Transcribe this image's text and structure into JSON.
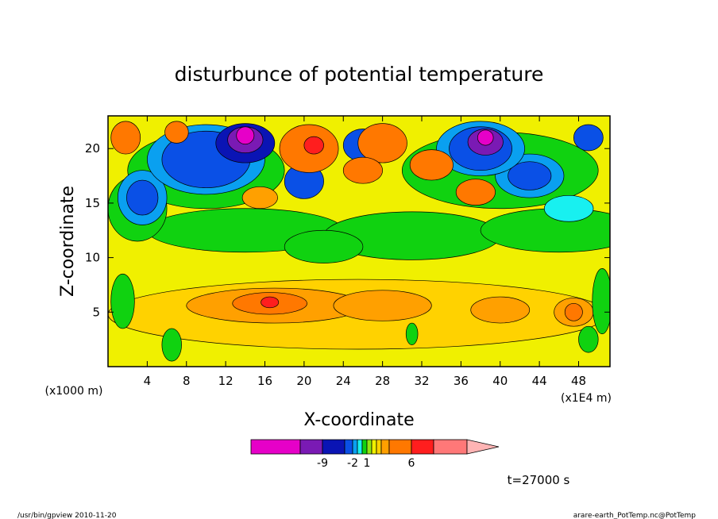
{
  "chart_data": {
    "type": "heatmap",
    "title": "disturbunce of potential temperature",
    "xlabel": "X-coordinate",
    "ylabel": "Z-coordinate",
    "x_unit_label": "(x1000 m)",
    "x_scale_label": "(x1E4 m)",
    "xlim": [
      0,
      51.2
    ],
    "ylim": [
      0,
      23
    ],
    "x_ticks": [
      "4",
      "8",
      "12",
      "16",
      "20",
      "24",
      "28",
      "32",
      "36",
      "40",
      "44",
      "48"
    ],
    "y_ticks": [
      "5",
      "10",
      "15",
      "20"
    ],
    "time_label": "t=27000 s",
    "colorbar": {
      "colors": [
        "#e600c8",
        "#7a1ab4",
        "#0a14b4",
        "#0a50e6",
        "#0aa0f0",
        "#18f0f0",
        "#10d210",
        "#90e610",
        "#f0f000",
        "#ffd200",
        "#ffa000",
        "#ff7800",
        "#ff1e1e",
        "#ff7878",
        "#ffb4b4"
      ],
      "tick_labels": [
        "-9",
        "-2",
        "1",
        "6"
      ]
    },
    "footer_left": "/usr/bin/gpview  2010-11-20",
    "footer_right": "arare-earth_PotTemp.nc@PotTemp"
  }
}
